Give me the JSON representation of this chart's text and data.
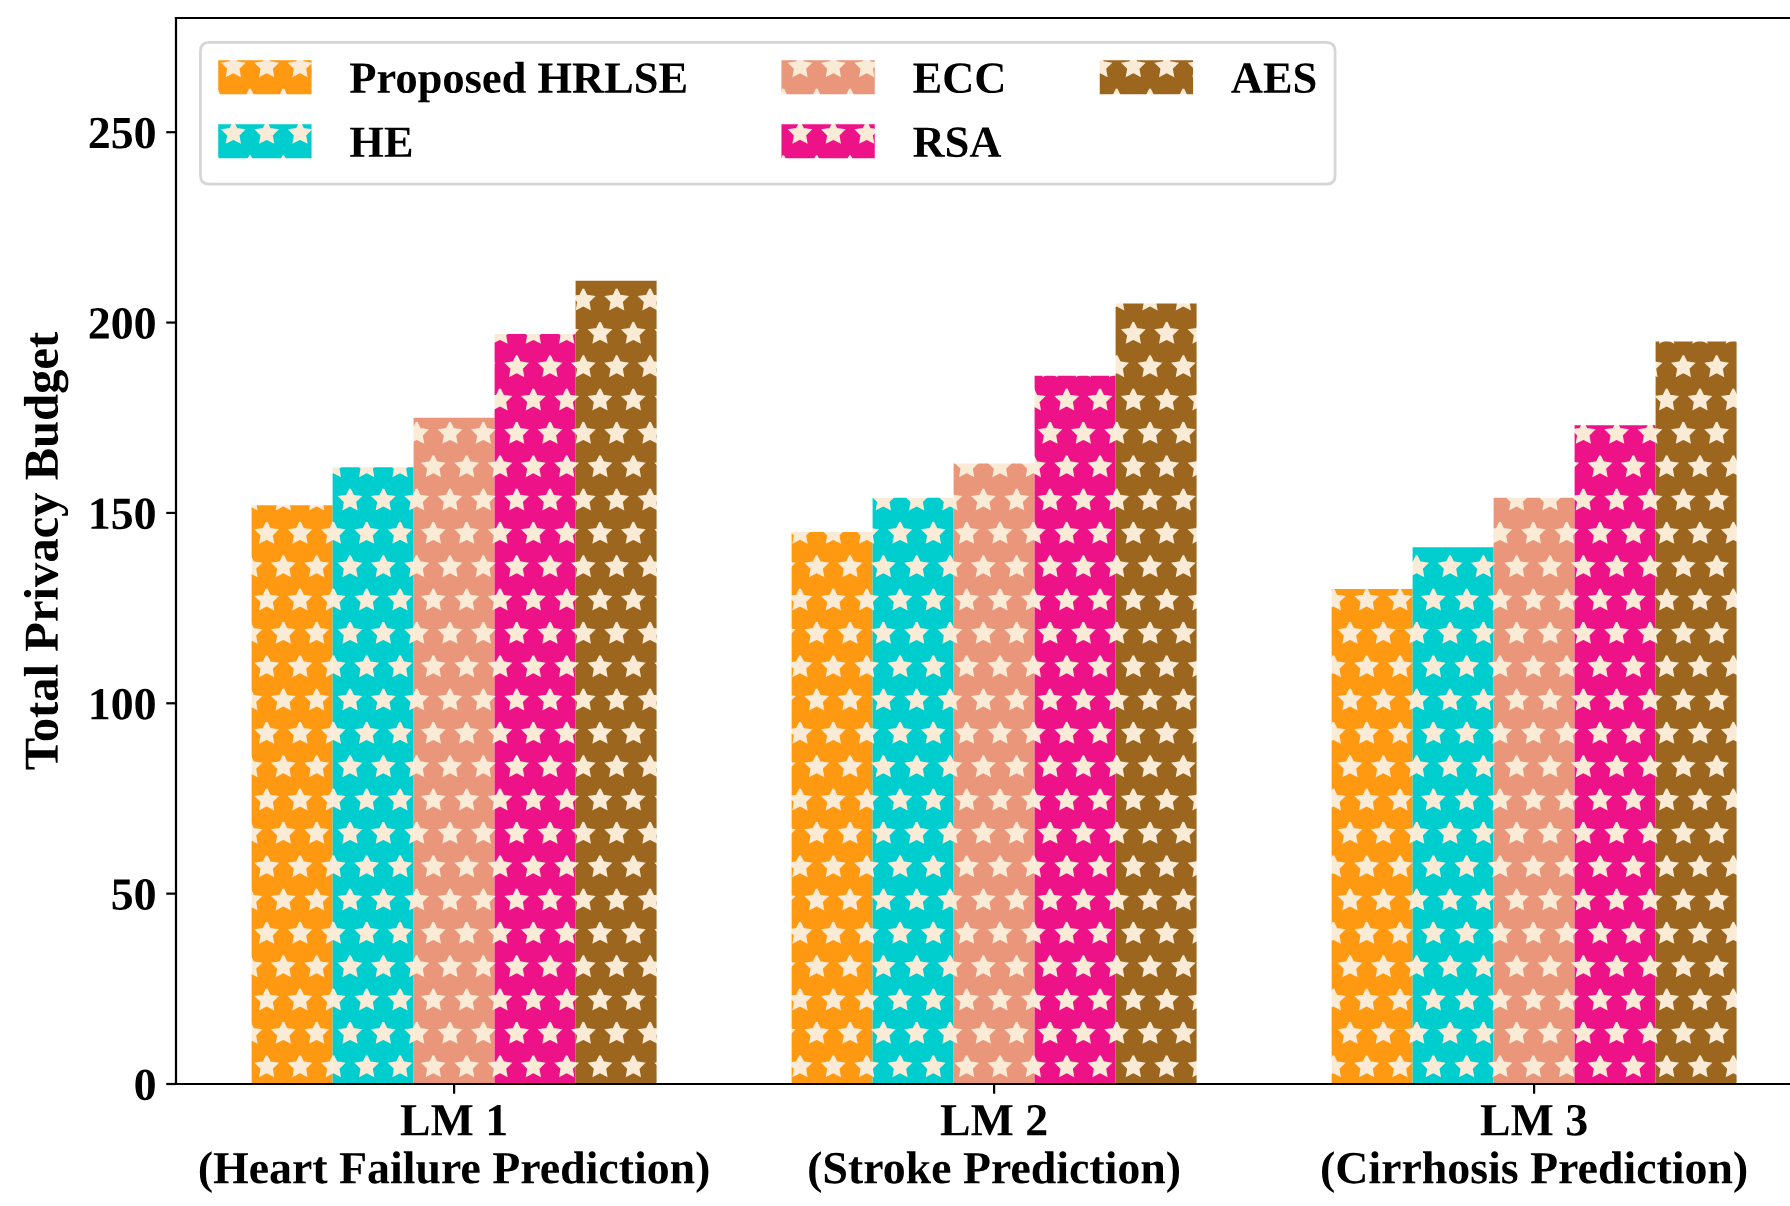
{
  "chart_data": {
    "type": "bar",
    "ylabel": "Total Privacy Budget",
    "categories": [
      "LM 1\n(Heart Failure Prediction)",
      "LM 2\n(Stroke Prediction)",
      "LM 3\n(Cirrhosis Prediction)"
    ],
    "series": [
      {
        "name": "Proposed HRLSE",
        "color": "#ff9912",
        "values": [
          152,
          145,
          130
        ]
      },
      {
        "name": "HE",
        "color": "#00cdcd",
        "values": [
          162,
          154,
          141
        ]
      },
      {
        "name": "ECC",
        "color": "#e9967a",
        "values": [
          175,
          163,
          154
        ]
      },
      {
        "name": "RSA",
        "color": "#ee1289",
        "values": [
          197,
          186,
          173
        ]
      },
      {
        "name": "AES",
        "color": "#9c661f",
        "values": [
          211,
          205,
          195
        ]
      }
    ],
    "ylim": [
      0,
      280
    ],
    "yticks": [
      0,
      50,
      100,
      150,
      200,
      250
    ],
    "grid": false,
    "legend": "top left"
  }
}
